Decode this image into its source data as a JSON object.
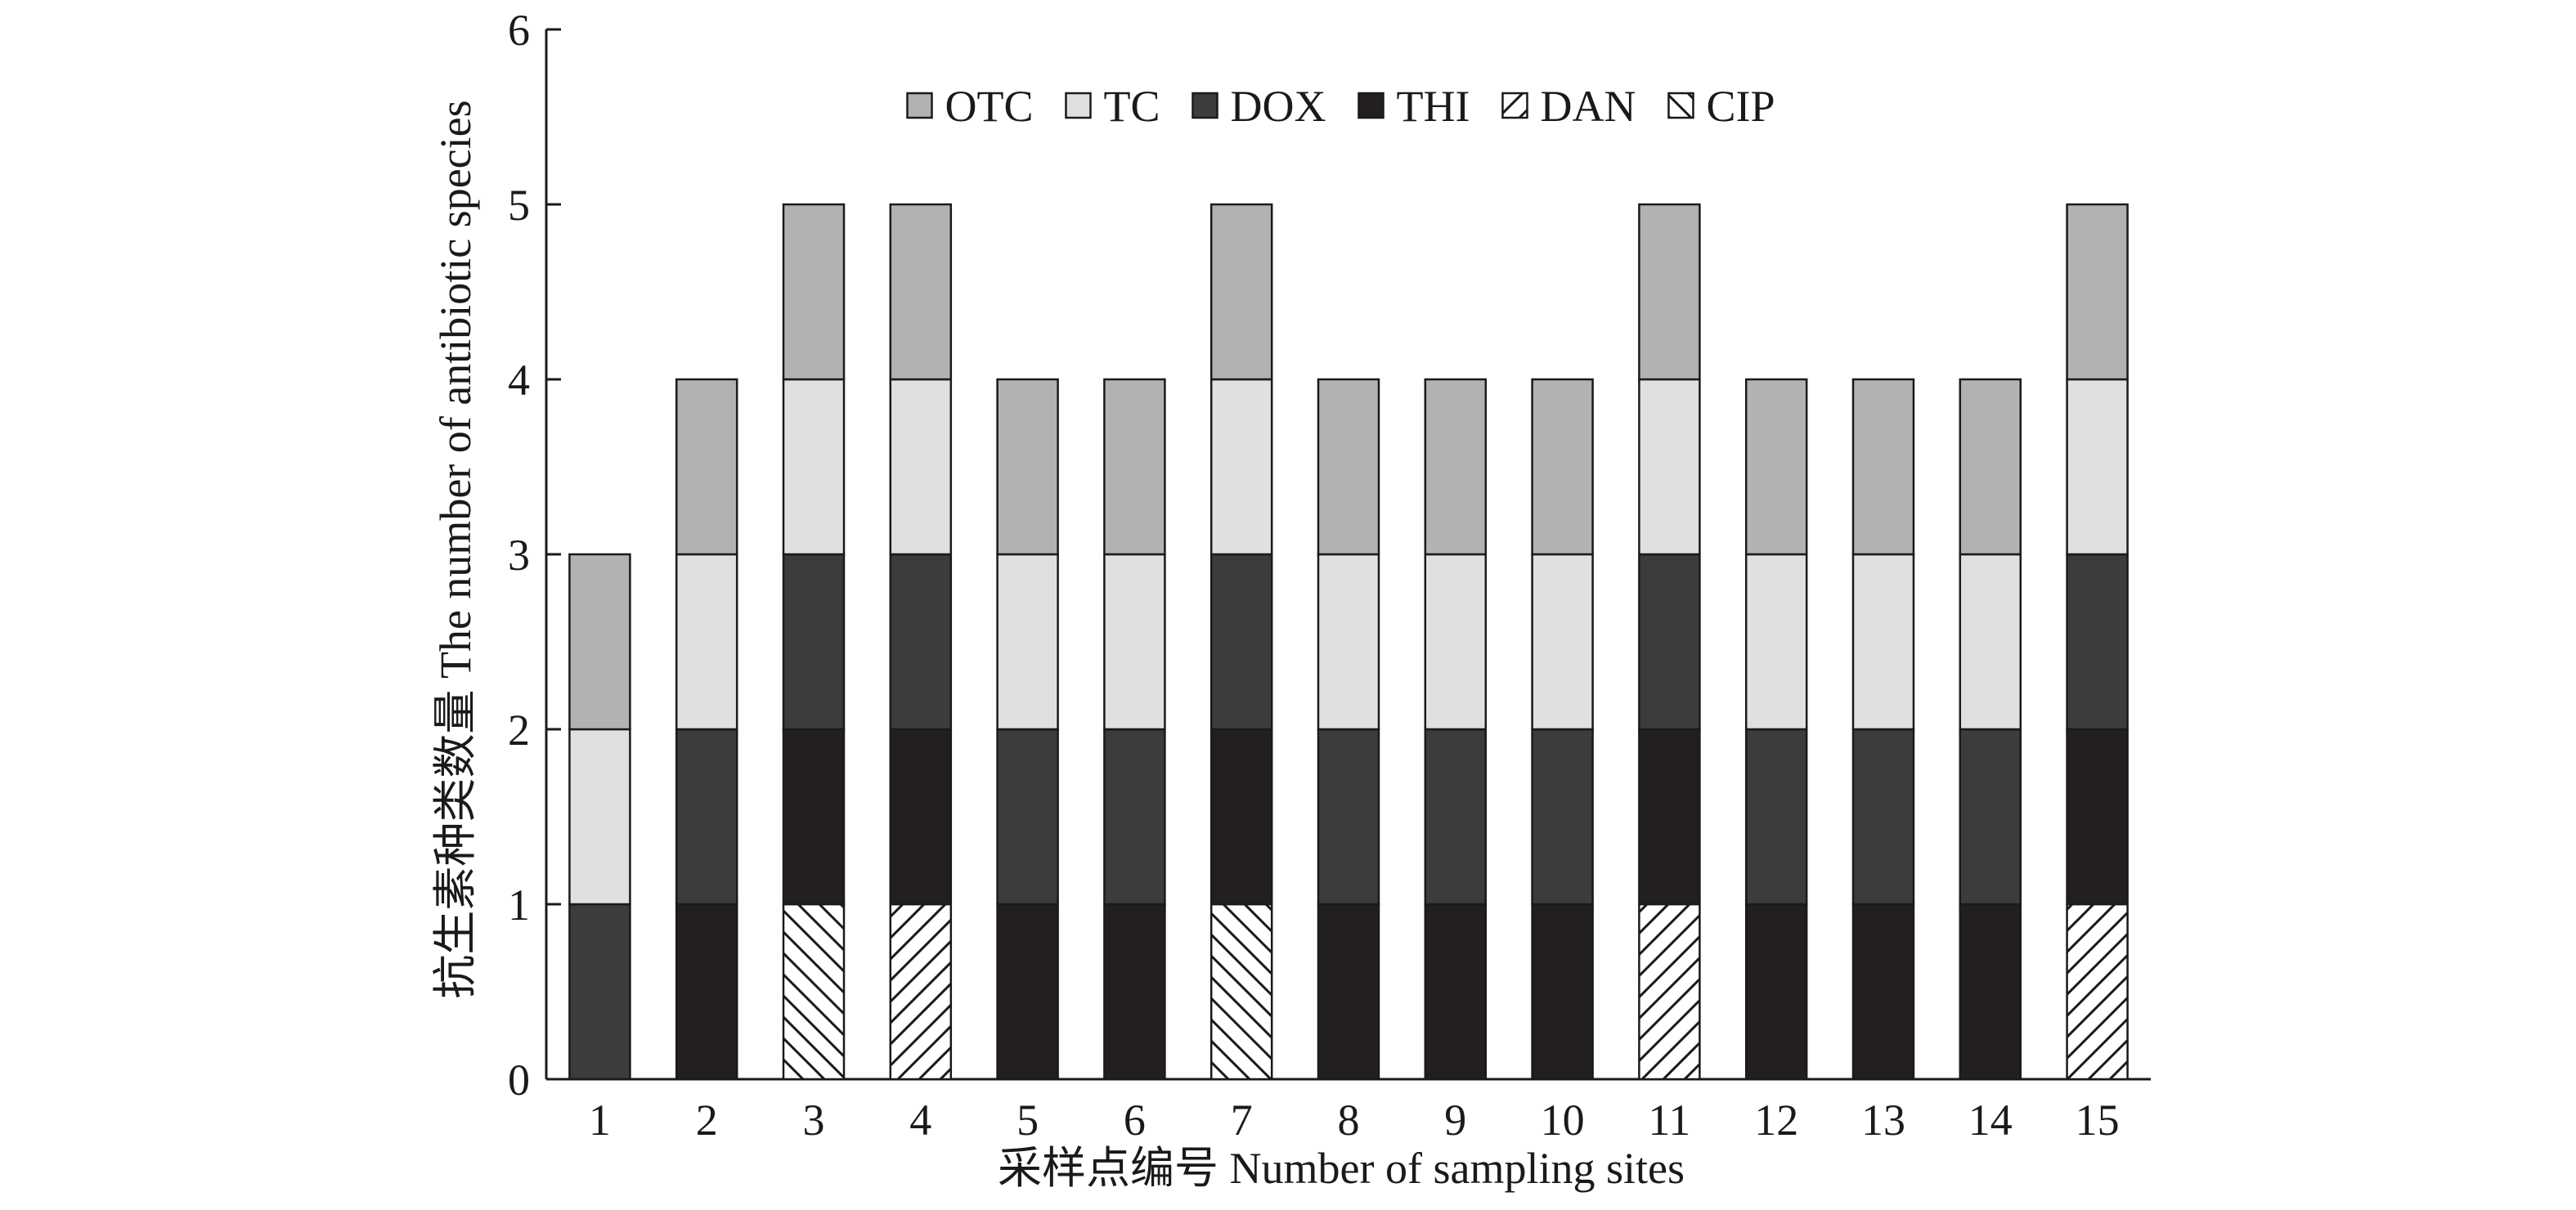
{
  "chart_data": {
    "type": "bar",
    "stacked": true,
    "title": "",
    "xlabel": "采样点编号 Number of sampling sites",
    "ylabel": "抗生素种类数量 The number of antibiotic species",
    "ylim": [
      0,
      6
    ],
    "yticks": [
      "0",
      "1",
      "2",
      "3",
      "4",
      "5",
      "6"
    ],
    "grid": false,
    "legend_position": "top-center",
    "categories": [
      "1",
      "2",
      "3",
      "4",
      "5",
      "6",
      "7",
      "8",
      "9",
      "10",
      "11",
      "12",
      "13",
      "14",
      "15"
    ],
    "series": [
      {
        "name": "CIP",
        "pattern": "hatch-backslash",
        "color": "#ffffff",
        "values": [
          0,
          0,
          1,
          0,
          0,
          0,
          1,
          0,
          0,
          0,
          0,
          0,
          0,
          0,
          0
        ]
      },
      {
        "name": "DAN",
        "pattern": "hatch-slash",
        "color": "#ffffff",
        "values": [
          0,
          0,
          0,
          1,
          0,
          0,
          0,
          0,
          0,
          0,
          1,
          0,
          0,
          0,
          1
        ]
      },
      {
        "name": "THI",
        "color": "#231f20",
        "values": [
          0,
          1,
          1,
          1,
          1,
          1,
          1,
          1,
          1,
          1,
          1,
          1,
          1,
          1,
          1
        ]
      },
      {
        "name": "DOX",
        "color": "#3d3c3d",
        "values": [
          1,
          1,
          1,
          1,
          1,
          1,
          1,
          1,
          1,
          1,
          1,
          1,
          1,
          1,
          1
        ]
      },
      {
        "name": "TC",
        "color": "#e0e0e0",
        "values": [
          1,
          1,
          1,
          1,
          1,
          1,
          1,
          1,
          1,
          1,
          1,
          1,
          1,
          1,
          1
        ]
      },
      {
        "name": "OTC",
        "color": "#b3b1b2",
        "values": [
          1,
          1,
          1,
          1,
          1,
          1,
          1,
          1,
          1,
          1,
          1,
          1,
          1,
          1,
          1
        ]
      }
    ],
    "legend_order": [
      "OTC",
      "TC",
      "DOX",
      "THI",
      "DAN",
      "CIP"
    ]
  }
}
